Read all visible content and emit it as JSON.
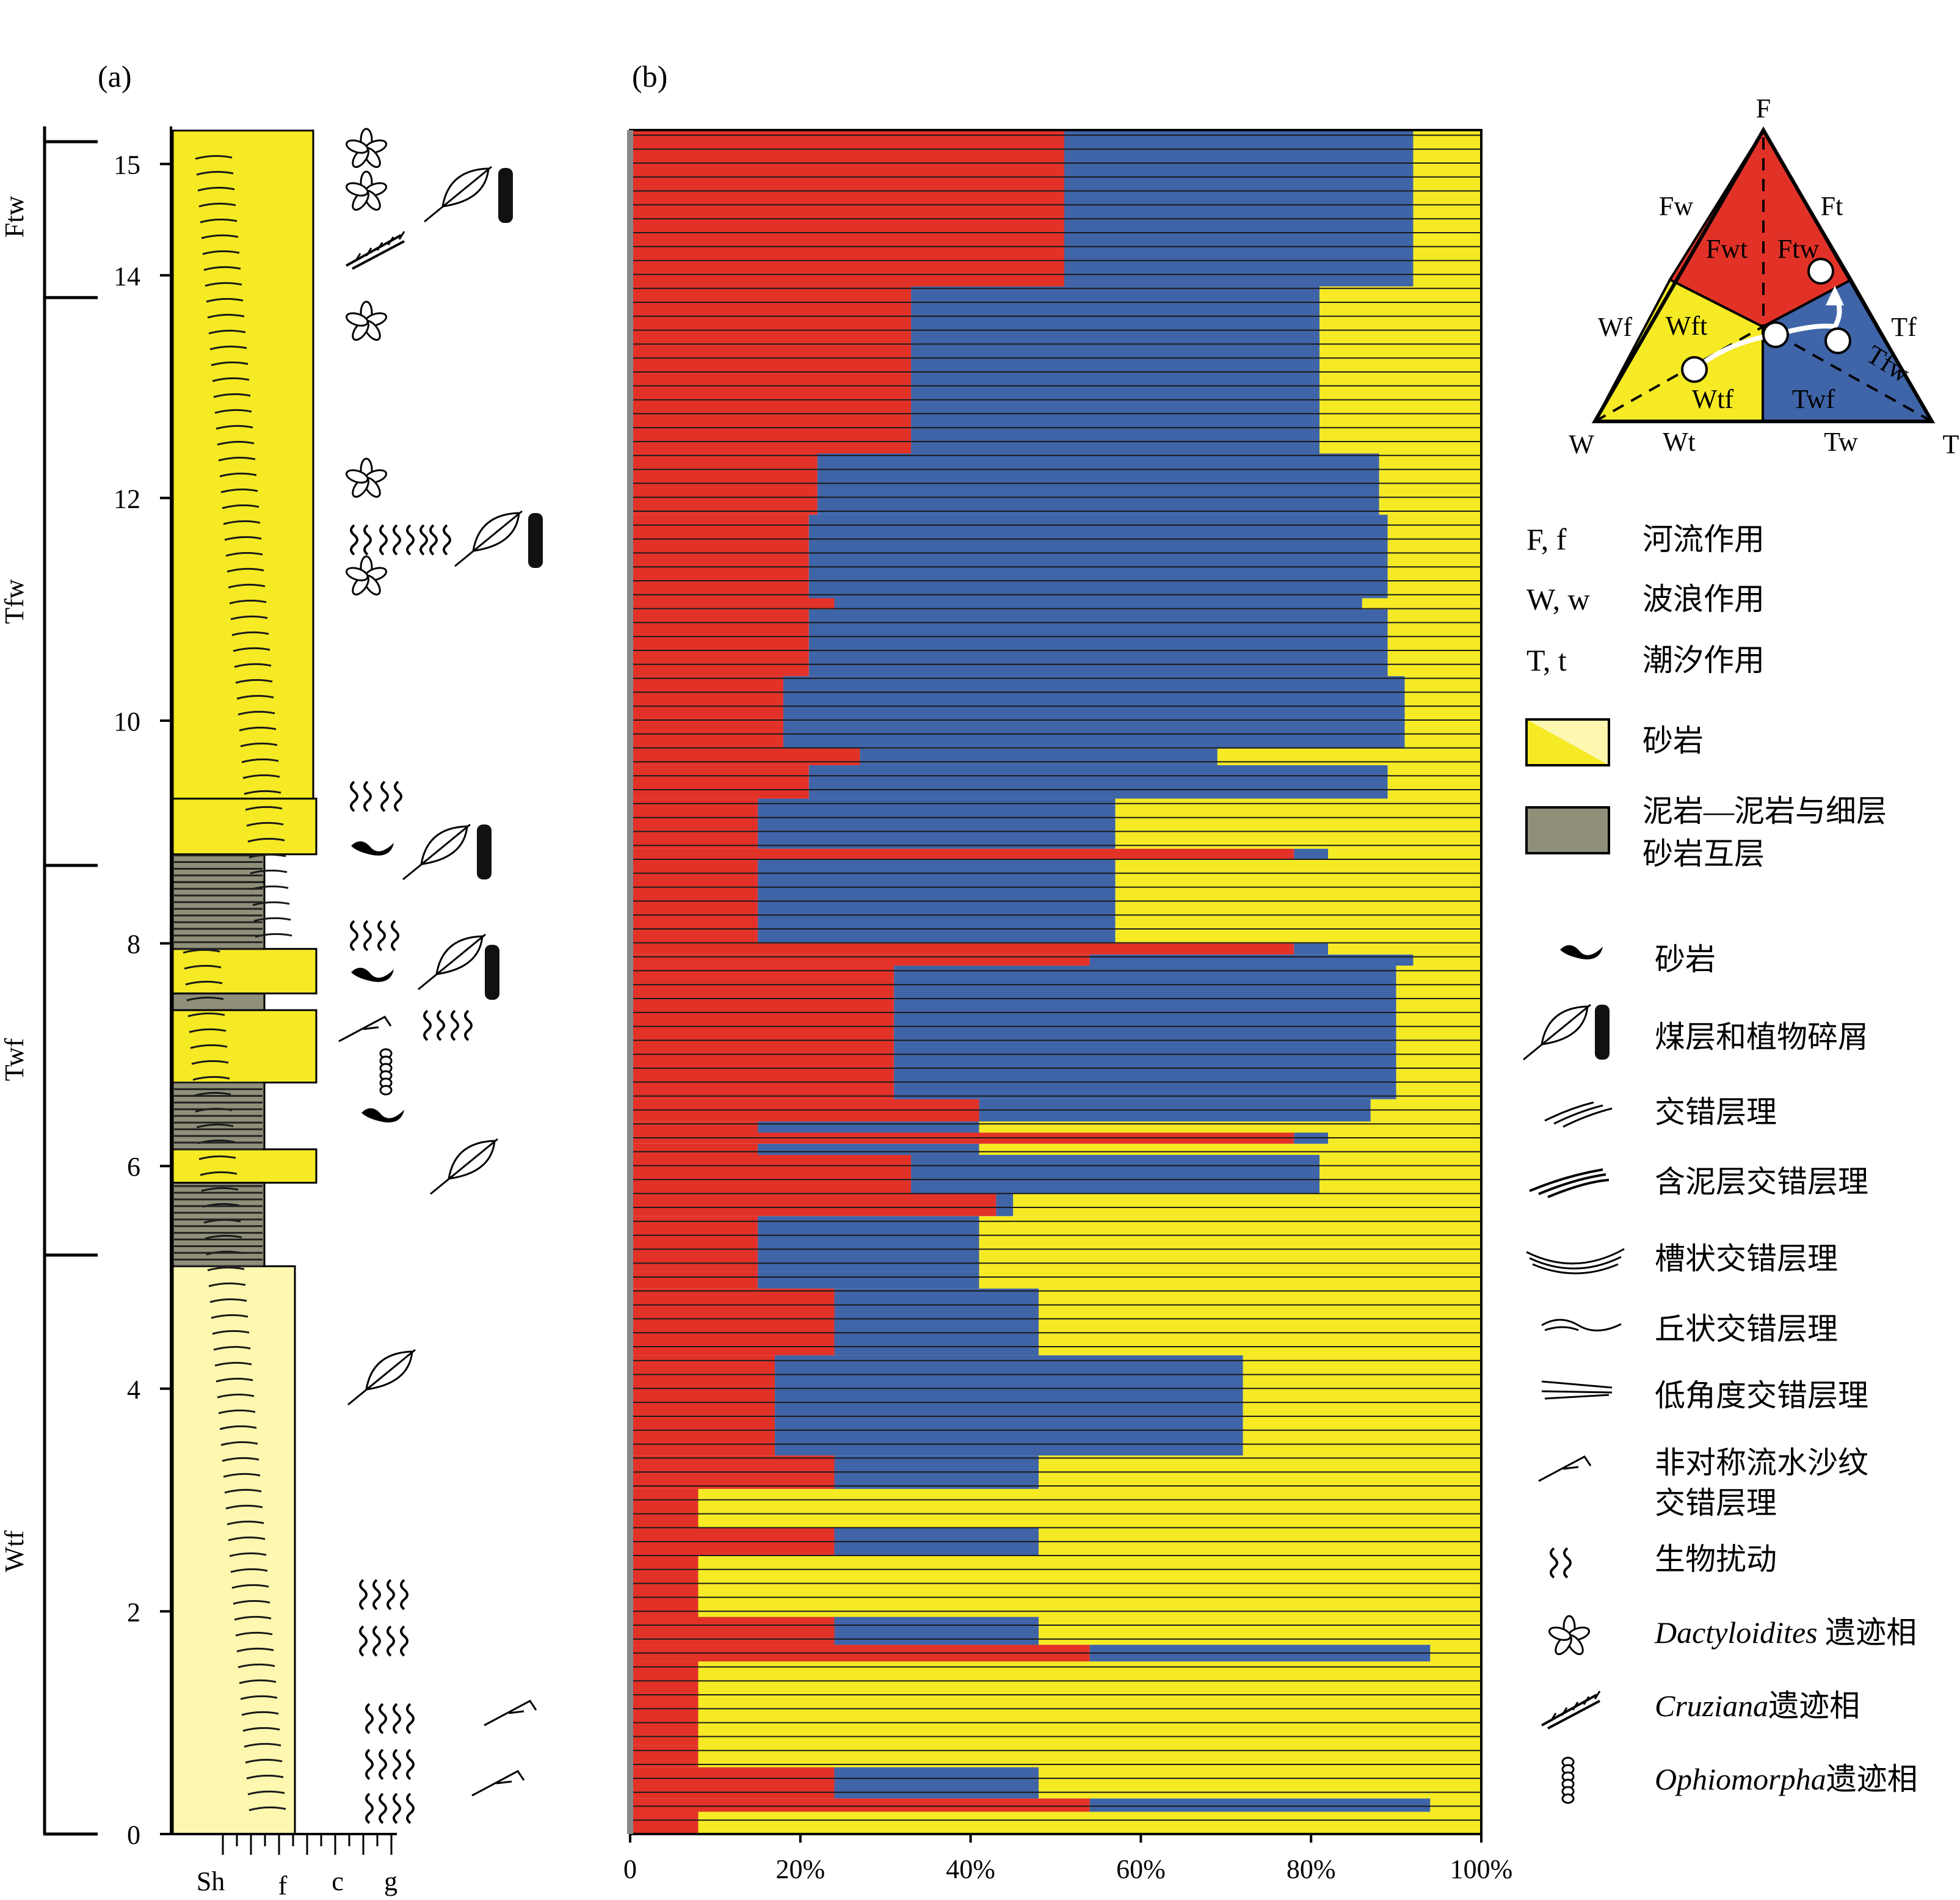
{
  "panel_a": {
    "label": "(a)",
    "unit_labels": [
      "Ftw",
      "Tfw",
      "Twf",
      "Wtf"
    ],
    "y_ticks": [
      "0",
      "2",
      "4",
      "6",
      "8",
      "10",
      "12",
      "14",
      "15"
    ],
    "grain_labels": [
      "Sh",
      "f",
      "c",
      "g"
    ]
  },
  "panel_b": {
    "label": "(b)"
  },
  "ternary": {
    "vertices": {
      "F": "F",
      "W": "W",
      "T": "T"
    },
    "edge_labels": {
      "Fw": "Fw",
      "Ft": "Ft",
      "Wf": "Wf",
      "Tf": "Tf",
      "Wt": "Wt",
      "Tw": "Tw"
    },
    "region_labels": {
      "Fwt": "Fwt",
      "Ftw": "Ftw",
      "Wft": "Wft",
      "Wtf": "Wtf",
      "Twf": "Twf",
      "Tfw": "Tfw"
    },
    "colors": {
      "F": "#e23228",
      "W": "#f5ea24",
      "T": "#3f64a8"
    }
  },
  "legend": {
    "process_rows": [
      {
        "key": "F, f",
        "text": "河流作用"
      },
      {
        "key": "W, w",
        "text": "波浪作用"
      },
      {
        "key": "T, t",
        "text": "潮汐作用"
      }
    ],
    "swatches": [
      {
        "text1": "砂岩",
        "text2": ""
      },
      {
        "text1": "泥岩—泥岩与细层",
        "text2": "砂岩互层"
      }
    ],
    "symbols": [
      {
        "name": "sandstone-lens",
        "text1": "砂岩",
        "text2": ""
      },
      {
        "name": "coal-plant",
        "text1": "煤层和植物碎屑",
        "text2": ""
      },
      {
        "name": "cross-bedding",
        "text1": "交错层理",
        "text2": ""
      },
      {
        "name": "mud-draped-cross-bedding",
        "text1": "含泥层交错层理",
        "text2": ""
      },
      {
        "name": "trough-cross-bedding",
        "text1": "槽状交错层理",
        "text2": ""
      },
      {
        "name": "hummocky-cross-bedding",
        "text1": "丘状交错层理",
        "text2": ""
      },
      {
        "name": "low-angle-cross-bedding",
        "text1": "低角度交错层理",
        "text2": ""
      },
      {
        "name": "asymmetric-ripple",
        "text1": "非对称流水沙纹",
        "text2": "交错层理"
      },
      {
        "name": "bioturbation",
        "text1": "生物扰动",
        "text2": ""
      }
    ],
    "ichno": [
      {
        "name": "dactyloidites",
        "italic": "Dactyloidites",
        "text": " 遗迹相"
      },
      {
        "name": "cruziana",
        "italic": "Cruziana",
        "text": "遗迹相"
      },
      {
        "name": "ophiomorpha",
        "italic": "Ophiomorpha",
        "text": "遗迹相"
      }
    ]
  },
  "chart_data": {
    "type": "bar",
    "orientation": "horizontal-stacked-100",
    "y_axis": {
      "range": [
        0,
        15.3
      ],
      "ticks": [
        0,
        2,
        4,
        6,
        8,
        10,
        12,
        14,
        15
      ]
    },
    "x_axis": {
      "range": [
        0,
        100
      ],
      "tick_labels": [
        "0",
        "20%",
        "40%",
        "60%",
        "80%",
        "100%"
      ]
    },
    "series_colors": {
      "fluvial": "#e23228",
      "tidal": "#3f64a8",
      "wave": "#f5ea24"
    },
    "segments": [
      {
        "y0": 0.0,
        "y1": 0.2,
        "fluvial": 8,
        "tidal": 0
      },
      {
        "y0": 0.2,
        "y1": 0.32,
        "fluvial": 54,
        "tidal": 40
      },
      {
        "y0": 0.32,
        "y1": 0.6,
        "fluvial": 24,
        "tidal": 24
      },
      {
        "y0": 0.6,
        "y1": 0.8,
        "fluvial": 8,
        "tidal": 0
      },
      {
        "y0": 0.8,
        "y1": 1.55,
        "fluvial": 8,
        "tidal": 0
      },
      {
        "y0": 1.55,
        "y1": 1.7,
        "fluvial": 54,
        "tidal": 40
      },
      {
        "y0": 1.7,
        "y1": 1.95,
        "fluvial": 24,
        "tidal": 24
      },
      {
        "y0": 1.95,
        "y1": 2.5,
        "fluvial": 8,
        "tidal": 0
      },
      {
        "y0": 2.5,
        "y1": 2.75,
        "fluvial": 24,
        "tidal": 24
      },
      {
        "y0": 2.75,
        "y1": 3.1,
        "fluvial": 8,
        "tidal": 0
      },
      {
        "y0": 3.1,
        "y1": 3.4,
        "fluvial": 24,
        "tidal": 24
      },
      {
        "y0": 3.4,
        "y1": 4.3,
        "fluvial": 17,
        "tidal": 55
      },
      {
        "y0": 4.3,
        "y1": 4.9,
        "fluvial": 24,
        "tidal": 24
      },
      {
        "y0": 4.9,
        "y1": 5.05,
        "fluvial": 15,
        "tidal": 26
      },
      {
        "y0": 5.05,
        "y1": 5.55,
        "fluvial": 15,
        "tidal": 26
      },
      {
        "y0": 5.55,
        "y1": 5.75,
        "fluvial": 43,
        "tidal": 2
      },
      {
        "y0": 5.75,
        "y1": 6.1,
        "fluvial": 33,
        "tidal": 48
      },
      {
        "y0": 6.1,
        "y1": 6.2,
        "fluvial": 15,
        "tidal": 26
      },
      {
        "y0": 6.2,
        "y1": 6.3,
        "fluvial": 78,
        "tidal": 4
      },
      {
        "y0": 6.3,
        "y1": 6.4,
        "fluvial": 15,
        "tidal": 26
      },
      {
        "y0": 6.4,
        "y1": 6.6,
        "fluvial": 41,
        "tidal": 46
      },
      {
        "y0": 6.6,
        "y1": 7.8,
        "fluvial": 31,
        "tidal": 59
      },
      {
        "y0": 7.8,
        "y1": 7.9,
        "fluvial": 54,
        "tidal": 38
      },
      {
        "y0": 7.9,
        "y1": 8.0,
        "fluvial": 78,
        "tidal": 4
      },
      {
        "y0": 8.0,
        "y1": 8.75,
        "fluvial": 15,
        "tidal": 42
      },
      {
        "y0": 8.75,
        "y1": 8.85,
        "fluvial": 78,
        "tidal": 4
      },
      {
        "y0": 8.85,
        "y1": 9.3,
        "fluvial": 15,
        "tidal": 42
      },
      {
        "y0": 9.3,
        "y1": 9.6,
        "fluvial": 21,
        "tidal": 68
      },
      {
        "y0": 9.6,
        "y1": 9.75,
        "fluvial": 27,
        "tidal": 42
      },
      {
        "y0": 9.75,
        "y1": 10.4,
        "fluvial": 18,
        "tidal": 73
      },
      {
        "y0": 10.4,
        "y1": 11.0,
        "fluvial": 21,
        "tidal": 68
      },
      {
        "y0": 11.0,
        "y1": 11.1,
        "fluvial": 24,
        "tidal": 62
      },
      {
        "y0": 11.1,
        "y1": 11.85,
        "fluvial": 21,
        "tidal": 68
      },
      {
        "y0": 11.85,
        "y1": 12.4,
        "fluvial": 22,
        "tidal": 66
      },
      {
        "y0": 12.4,
        "y1": 13.9,
        "fluvial": 33,
        "tidal": 48
      },
      {
        "y0": 13.9,
        "y1": 15.3,
        "fluvial": 51,
        "tidal": 41
      }
    ],
    "column": {
      "beds": [
        {
          "y0": 0.0,
          "y1": 5.1,
          "lith": "sandstone-light"
        },
        {
          "y0": 5.1,
          "y1": 5.85,
          "lith": "mudstone"
        },
        {
          "y0": 5.85,
          "y1": 6.15,
          "lith": "sandstone"
        },
        {
          "y0": 6.15,
          "y1": 6.75,
          "lith": "mudstone"
        },
        {
          "y0": 6.75,
          "y1": 7.4,
          "lith": "sandstone"
        },
        {
          "y0": 7.4,
          "y1": 7.55,
          "lith": "mudstone"
        },
        {
          "y0": 7.55,
          "y1": 7.95,
          "lith": "sandstone"
        },
        {
          "y0": 7.95,
          "y1": 8.55,
          "lith": "mudstone"
        },
        {
          "y0": 8.55,
          "y1": 8.8,
          "lith": "mudstone"
        },
        {
          "y0": 8.8,
          "y1": 9.3,
          "lith": "sandstone"
        },
        {
          "y0": 9.3,
          "y1": 15.3,
          "lith": "sandstone"
        }
      ],
      "unit_bounds": [
        0,
        5.2,
        8.7,
        13.8,
        15.2
      ]
    }
  }
}
